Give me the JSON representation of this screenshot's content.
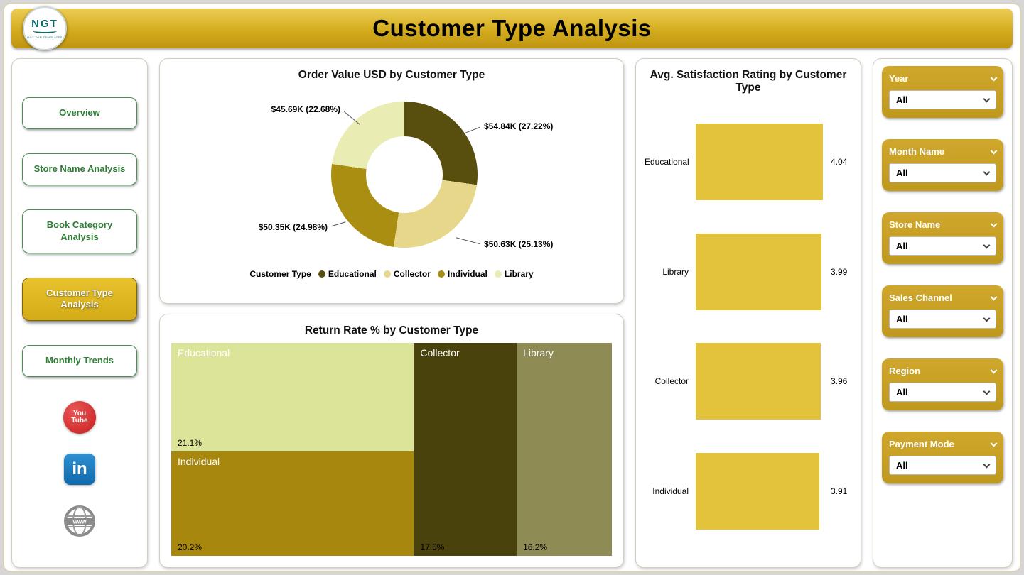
{
  "header": {
    "title": "Customer Type Analysis",
    "logo_text": "NGT",
    "logo_sub": "NGT XGR TEMPLATES"
  },
  "sidebar": {
    "items": [
      {
        "label": "Overview",
        "active": false
      },
      {
        "label": "Store Name Analysis",
        "active": false
      },
      {
        "label": "Book Category Analysis",
        "active": false
      },
      {
        "label": "Customer Type Analysis",
        "active": true
      },
      {
        "label": "Monthly Trends",
        "active": false
      }
    ],
    "social_icons": [
      "youtube-icon",
      "linkedin-icon",
      "globe-icon"
    ],
    "youtube_line1": "You",
    "youtube_line2": "Tube",
    "linkedin_glyph": "in"
  },
  "colors": {
    "header_gold": "#D4AC1E",
    "slicer_gold": "#C9A227",
    "nav_green": "#2E7D35",
    "active_button_gold": "#DDB622"
  },
  "chart_data": [
    {
      "type": "pie",
      "subtype": "donut",
      "title": "Order Value USD by Customer Type",
      "legend_title": "Customer Type",
      "legend_position": "bottom",
      "labels": [
        "Educational",
        "Collector",
        "Individual",
        "Library"
      ],
      "values_usd_k": [
        54.84,
        50.63,
        50.35,
        45.69
      ],
      "percents": [
        27.22,
        25.13,
        24.98,
        22.68
      ],
      "data_labels": [
        "$54.84K (27.22%)",
        "$50.63K (25.13%)",
        "$50.35K (24.98%)",
        "$45.69K (22.68%)"
      ],
      "colors": [
        "#584E0D",
        "#E6D78A",
        "#A98E12",
        "#E9EDB3"
      ]
    },
    {
      "type": "treemap",
      "title": "Return Rate % by Customer Type",
      "items": [
        {
          "label": "Educational",
          "value": 21.1,
          "pct": "21.1%",
          "color": "#DCE49A"
        },
        {
          "label": "Individual",
          "value": 20.2,
          "pct": "20.2%",
          "color": "#A8870E"
        },
        {
          "label": "Collector",
          "value": 17.5,
          "pct": "17.5%",
          "color": "#4A420C"
        },
        {
          "label": "Library",
          "value": 16.2,
          "pct": "16.2%",
          "color": "#8E8B55"
        }
      ]
    },
    {
      "type": "bar",
      "orientation": "horizontal",
      "title": "Avg. Satisfaction Rating by Customer Type",
      "categories": [
        "Educational",
        "Library",
        "Collector",
        "Individual"
      ],
      "values": [
        4.04,
        3.99,
        3.96,
        3.91
      ],
      "axis_max": 4.1,
      "bar_color": "#E4C33C",
      "grid": false
    }
  ],
  "filters": [
    {
      "label": "Year",
      "value": "All"
    },
    {
      "label": "Month Name",
      "value": "All"
    },
    {
      "label": "Store Name",
      "value": "All"
    },
    {
      "label": "Sales Channel",
      "value": "All"
    },
    {
      "label": "Region",
      "value": "All"
    },
    {
      "label": "Payment Mode",
      "value": "All"
    }
  ]
}
